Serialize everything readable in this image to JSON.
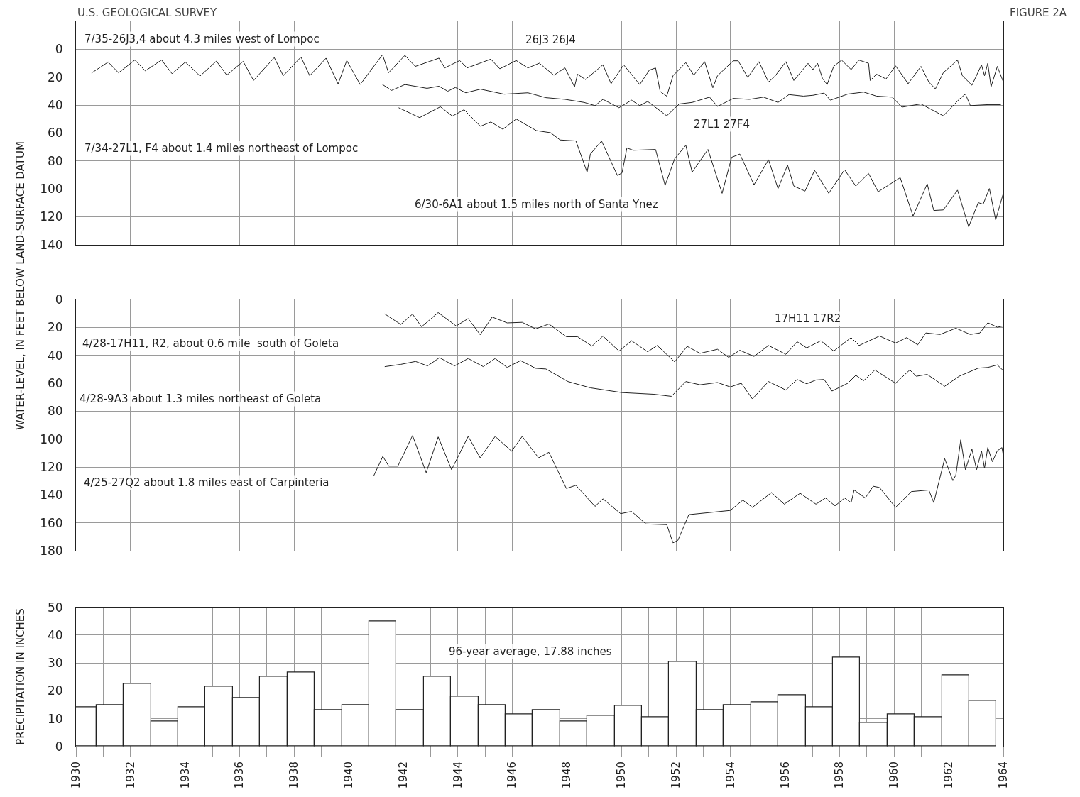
{
  "chart_data": [
    {
      "type": "line",
      "title": "U.S. GEOLOGICAL SURVEY",
      "ylabel": "WATER-LEVEL, IN FEET BELOW LAND-SURFACE DATUM",
      "annotations": [
        "FIGURE 2A",
        "7/35-26J3,4 about 4.3 miles west of Lompoc",
        "26J3 26J4",
        "7/34-27L1, F4 about 1.4 miles northeast of Lompoc",
        "27L1 27F4",
        "6/30-6A1 about 1.5 miles north of Santa Ynez"
      ],
      "xlim": [
        1930,
        1964
      ],
      "xticks": [
        1930,
        1932,
        1934,
        1936,
        1938,
        1940,
        1942,
        1944,
        1946,
        1948,
        1950,
        1952,
        1954,
        1956,
        1958,
        1960,
        1962,
        1964
      ],
      "ylim": [
        140,
        -20
      ],
      "yticks": [
        {
          "value": -20,
          "label": null
        },
        0,
        20,
        40,
        60,
        80,
        100,
        120,
        140
      ],
      "grid": true,
      "tick_labels": "y",
      "series": [
        {
          "color": "#222222",
          "x": [
            1930.58,
            1931.18,
            1931.56,
            1932.16,
            1932.54,
            1933.14,
            1933.52,
            1934.01,
            1934.55,
            1935.15,
            1935.53,
            1936.13,
            1936.51,
            1937.27,
            1937.6,
            1938.25,
            1938.57,
            1939.17,
            1939.61,
            1939.93,
            1940.42,
            1941.24,
            1941.46,
            1942.06,
            1942.44,
            1943.31,
            1943.52,
            1944.07,
            1944.34,
            1945.21,
            1945.54,
            1946.14,
            1946.57,
            1946.99,
            1947.52,
            1947.93,
            1948.28,
            1948.39,
            1948.68,
            1949.32,
            1949.62,
            1950.08,
            1950.67,
            1951.02,
            1951.25,
            1951.42,
            1951.66,
            1951.89,
            1952.36,
            1952.65,
            1953.05,
            1953.35,
            1953.52,
            1954.1,
            1954.28,
            1954.63,
            1955.04,
            1955.39,
            1955.62,
            1956.03,
            1956.32,
            1956.84,
            1957.02,
            1957.19,
            1957.37,
            1957.54,
            1957.78,
            1958.07,
            1958.42,
            1958.71,
            1959.06,
            1959.12,
            1959.35,
            1959.7,
            1960.05,
            1960.51,
            1960.98,
            1961.27,
            1961.51,
            1961.8,
            1962.32,
            1962.5,
            1962.85,
            1963.2,
            1963.31,
            1963.43,
            1963.55,
            1963.78,
            1963.98
          ],
          "values": [
            16.9,
            9.2,
            16.9,
            7.7,
            15.5,
            7.7,
            17.5,
            9.2,
            19.2,
            8.5,
            18.6,
            8.7,
            22.4,
            6,
            19,
            5.6,
            19,
            6.4,
            24.9,
            8.1,
            25.3,
            3.9,
            16.9,
            4.4,
            12.3,
            6.4,
            13.4,
            8.1,
            13.4,
            7.1,
            14,
            8.1,
            13.4,
            10,
            18.6,
            13.4,
            26.9,
            17.9,
            21.7,
            11.2,
            24.7,
            11.2,
            25.3,
            15,
            13.4,
            30.3,
            33.6,
            19,
            9.6,
            18.6,
            8.9,
            27.6,
            19,
            8.3,
            8.3,
            20.2,
            8.9,
            23.5,
            19.5,
            8.9,
            22.4,
            10.1,
            14.6,
            10.1,
            20.9,
            25.3,
            12.3,
            7.8,
            14.6,
            7.8,
            10.1,
            22.4,
            17.9,
            21.3,
            11.9,
            24.7,
            12.3,
            23.5,
            28.4,
            16.8,
            7.8,
            19,
            25.8,
            11.2,
            19,
            10.1,
            26.9,
            12.3,
            22.4
          ]
        },
        {
          "color": "#222222",
          "x": [
            1941.24,
            1941.57,
            1942.06,
            1942.87,
            1943.31,
            1943.63,
            1943.91,
            1944.29,
            1944.83,
            1945.7,
            1946.57,
            1947.23,
            1947.93,
            1948.63,
            1949.03,
            1949.32,
            1949.91,
            1950.37,
            1950.67,
            1950.96,
            1951.66,
            1952.12,
            1952.59,
            1953.23,
            1953.52,
            1954.1,
            1954.69,
            1955.21,
            1955.74,
            1956.14,
            1956.67,
            1957.02,
            1957.43,
            1957.66,
            1958.3,
            1958.88,
            1959.35,
            1959.93,
            1960.28,
            1960.98,
            1961.8,
            1962.38,
            1962.61,
            1962.79,
            1963.43,
            1963.9
          ],
          "values": [
            25.3,
            29.5,
            25.3,
            28,
            26.5,
            30.1,
            27.4,
            31.2,
            28.6,
            32.2,
            31.2,
            34.7,
            35.9,
            38.1,
            40.4,
            35.9,
            41.9,
            36.5,
            40.4,
            37.4,
            47.7,
            39.2,
            38.1,
            34.3,
            41,
            35.2,
            35.9,
            34.3,
            38.1,
            32.5,
            33.6,
            33,
            31.4,
            36.5,
            32.1,
            30.7,
            33.6,
            34.3,
            41.5,
            39.2,
            47.7,
            35.9,
            32.1,
            40.4,
            39.7,
            39.7
          ]
        },
        {
          "color": "#222222",
          "x": [
            1941.84,
            1942.6,
            1943.36,
            1943.8,
            1944.23,
            1944.83,
            1945.21,
            1945.65,
            1946.14,
            1946.88,
            1947.4,
            1947.75,
            1948.33,
            1948.74,
            1948.86,
            1949.27,
            1949.85,
            1950.02,
            1950.2,
            1950.43,
            1951.25,
            1951.6,
            1951.95,
            1952.36,
            1952.59,
            1953.17,
            1953.69,
            1954.04,
            1954.34,
            1954.86,
            1955.39,
            1955.74,
            1956.09,
            1956.32,
            1956.73,
            1957.08,
            1957.6,
            1958.18,
            1958.59,
            1959.06,
            1959.41,
            1960.22,
            1960.69,
            1961.21,
            1961.45,
            1961.8,
            1962.32,
            1962.73,
            1963.08,
            1963.26,
            1963.49,
            1963.72,
            1964.0
          ],
          "values": [
            42,
            49,
            41.2,
            47.9,
            43.3,
            55.2,
            52.1,
            57.3,
            50,
            58.3,
            59.8,
            65,
            65.7,
            88.1,
            75.1,
            65.7,
            90.4,
            88.6,
            70.7,
            72.4,
            71.8,
            97.5,
            78.5,
            68.8,
            88.1,
            71.8,
            103.2,
            77.4,
            75.1,
            97.1,
            79.1,
            99.8,
            83,
            98,
            101.6,
            86.8,
            103.2,
            86.3,
            98,
            89,
            102.1,
            92,
            119.5,
            96.4,
            115.5,
            115.1,
            100.9,
            127.2,
            109.9,
            111,
            99.8,
            122.2,
            103.2
          ]
        }
      ]
    },
    {
      "type": "line",
      "annotations": [
        "4/28-17H11, R2, about 0.6 mile  south of Goleta",
        "17H11 17R2",
        "4/28-9A3 about 1.3 miles northeast of Goleta",
        "4/25-27Q2 about 1.8 miles east of Carpinteria"
      ],
      "xlim": [
        1930,
        1964
      ],
      "xticks": [
        1930,
        1932,
        1934,
        1936,
        1938,
        1940,
        1942,
        1944,
        1946,
        1948,
        1950,
        1952,
        1954,
        1956,
        1958,
        1960,
        1962,
        1964
      ],
      "ylim": [
        180,
        0
      ],
      "yticks": [
        0,
        20,
        40,
        60,
        80,
        100,
        120,
        140,
        160,
        180
      ],
      "grid": true,
      "tick_labels": "y",
      "series": [
        {
          "color": "#222222",
          "x": [
            1941.33,
            1941.91,
            1942.34,
            1942.67,
            1943.28,
            1943.94,
            1944.38,
            1944.82,
            1945.26,
            1945.81,
            1946.36,
            1946.85,
            1947.34,
            1947.98,
            1948.39,
            1948.92,
            1949.32,
            1949.91,
            1950.37,
            1950.96,
            1951.31,
            1951.95,
            1952.41,
            1952.88,
            1953.52,
            1953.93,
            1954.34,
            1954.86,
            1955.39,
            1956.03,
            1956.44,
            1956.79,
            1957.31,
            1957.78,
            1958.42,
            1958.71,
            1959.46,
            1960.05,
            1960.46,
            1960.86,
            1961.16,
            1961.68,
            1962.26,
            1962.79,
            1963.14,
            1963.43,
            1963.78,
            1964.0
          ],
          "values": [
            10.5,
            17.9,
            10.5,
            19.6,
            9.4,
            19,
            13.7,
            25.3,
            12.6,
            16.8,
            16.4,
            21.1,
            17.6,
            26.7,
            26.7,
            33.4,
            26.2,
            37,
            29.6,
            37.5,
            33,
            44.7,
            33.6,
            38.6,
            35.7,
            41.5,
            36.4,
            40.8,
            33,
            39.3,
            30.3,
            34.7,
            29.6,
            37,
            27.3,
            33,
            26.2,
            31.2,
            27.3,
            32.5,
            24,
            25.1,
            20.6,
            25.1,
            24,
            16.7,
            19.9,
            19
          ]
        },
        {
          "color": "#222222",
          "x": [
            1941.33,
            1941.91,
            1942.45,
            1942.89,
            1943.33,
            1943.88,
            1944.38,
            1944.93,
            1945.37,
            1945.81,
            1946.3,
            1946.85,
            1947.23,
            1948.04,
            1948.86,
            1950.02,
            1951.19,
            1951.83,
            1952.36,
            1952.88,
            1953.52,
            1953.99,
            1954.39,
            1954.8,
            1955.39,
            1956.03,
            1956.44,
            1956.79,
            1957.13,
            1957.43,
            1957.72,
            1958.3,
            1958.59,
            1958.88,
            1959.29,
            1960.05,
            1960.57,
            1960.81,
            1961.21,
            1961.85,
            1962.38,
            1963.08,
            1963.43,
            1963.78,
            1964.0
          ],
          "values": [
            48.1,
            46.5,
            44.4,
            47.6,
            41.7,
            47.6,
            42.3,
            48.1,
            42.3,
            48.7,
            43.8,
            49.3,
            49.8,
            58.8,
            63.3,
            66.7,
            67.9,
            69.4,
            58.8,
            61.1,
            59.5,
            62.7,
            60,
            71.2,
            58.8,
            64.9,
            57.3,
            60.4,
            57.7,
            57.3,
            65.6,
            60,
            54.3,
            58.2,
            50.5,
            60,
            50.5,
            55,
            53.7,
            62.2,
            55,
            49.2,
            48.7,
            46.9,
            51
          ]
        },
        {
          "color": "#222222",
          "x": [
            1940.92,
            1941.25,
            1941.47,
            1941.8,
            1942.34,
            1942.84,
            1943.28,
            1943.77,
            1944.38,
            1944.82,
            1945.37,
            1945.97,
            1946.36,
            1946.96,
            1947.34,
            1947.98,
            1948.33,
            1949.03,
            1949.32,
            1949.97,
            1950.37,
            1950.9,
            1951.66,
            1951.89,
            1952.07,
            1952.47,
            1953.99,
            1954.45,
            1954.8,
            1955.5,
            1955.97,
            1956.55,
            1957.13,
            1957.48,
            1957.83,
            1958.18,
            1958.42,
            1958.53,
            1958.94,
            1959.23,
            1959.46,
            1960.05,
            1960.63,
            1961.27,
            1961.45,
            1961.85,
            1962.15,
            1962.26,
            1962.44,
            1962.61,
            1962.85,
            1963.02,
            1963.2,
            1963.31,
            1963.43,
            1963.6,
            1963.78,
            1963.95,
            1964.0
          ],
          "values": [
            126.2,
            112.4,
            119.4,
            119.4,
            97.5,
            124,
            98.5,
            121.9,
            98.1,
            113.4,
            98.1,
            108.7,
            98.1,
            113.4,
            109.5,
            135.4,
            133.1,
            148.2,
            142.8,
            153.4,
            151.8,
            160.8,
            161.3,
            174.3,
            172.5,
            154.1,
            151.1,
            143.7,
            148.9,
            138.3,
            146.6,
            138.8,
            146.6,
            142.2,
            147.8,
            142.2,
            145.5,
            136.5,
            142.2,
            133.8,
            134.7,
            148.9,
            137.6,
            136.5,
            145.5,
            114,
            129.8,
            125.7,
            100.5,
            121.9,
            107.3,
            121.9,
            108.4,
            120.8,
            106.1,
            116.2,
            108.4,
            106.1,
            111.7
          ]
        }
      ]
    },
    {
      "type": "bar",
      "ylabel": "PRECIPITATION IN INCHES",
      "annotations": [
        "96-year average, 17.88 inches"
      ],
      "x": [
        1930.25,
        1931.25,
        1932.25,
        1933.25,
        1934.25,
        1935.25,
        1936.25,
        1937.25,
        1938.25,
        1939.25,
        1940.25,
        1941.25,
        1942.25,
        1943.25,
        1944.25,
        1945.25,
        1946.25,
        1947.25,
        1948.25,
        1949.25,
        1950.25,
        1951.25,
        1952.25,
        1953.25,
        1954.25,
        1955.25,
        1956.25,
        1957.25,
        1958.25,
        1959.25,
        1960.25,
        1961.25,
        1962.25,
        1963.25
      ],
      "values": [
        14,
        15,
        22.5,
        9,
        14,
        21.5,
        17.5,
        25,
        26.5,
        13,
        15,
        45,
        13,
        25,
        18,
        15,
        11.5,
        13,
        9,
        11,
        14.5,
        10.5,
        30.5,
        13,
        15,
        16,
        18.5,
        14,
        32,
        8.5,
        11.5,
        10.5,
        25.5,
        16.5
      ],
      "color": "#ffffff",
      "xlim": [
        1930,
        1964
      ],
      "xticks": [
        1930,
        {
          "value": 1931,
          "label": null
        },
        1932,
        {
          "value": 1933,
          "label": null
        },
        1934,
        {
          "value": 1935,
          "label": null
        },
        1936,
        {
          "value": 1937,
          "label": null
        },
        1938,
        {
          "value": 1939,
          "label": null
        },
        1940,
        {
          "value": 1941,
          "label": null
        },
        1942,
        {
          "value": 1943,
          "label": null
        },
        1944,
        {
          "value": 1945,
          "label": null
        },
        1946,
        {
          "value": 1947,
          "label": null
        },
        1948,
        {
          "value": 1949,
          "label": null
        },
        1950,
        {
          "value": 1951,
          "label": null
        },
        1952,
        {
          "value": 1953,
          "label": null
        },
        1954,
        {
          "value": 1955,
          "label": null
        },
        1956,
        {
          "value": 1957,
          "label": null
        },
        1958,
        {
          "value": 1959,
          "label": null
        },
        1960,
        {
          "value": 1961,
          "label": null
        },
        1962,
        {
          "value": 1963,
          "label": null
        },
        1964
      ],
      "ylim": [
        0,
        50
      ],
      "yticks": [
        0,
        10,
        20,
        30,
        40,
        50
      ],
      "grid": true
    }
  ]
}
